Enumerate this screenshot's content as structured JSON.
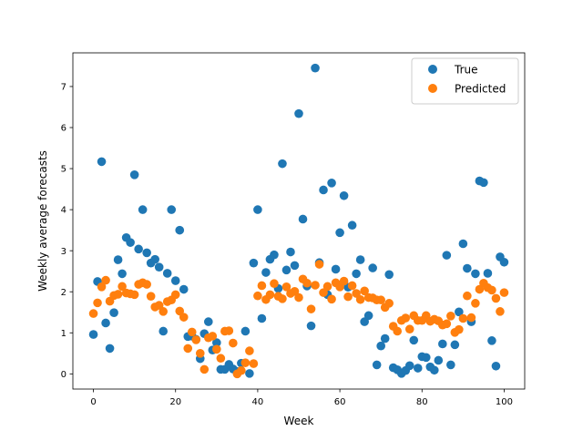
{
  "chart_data": {
    "type": "scatter",
    "xlabel": "Week",
    "ylabel": "Weekly average forecasts",
    "xlim": [
      -5,
      105
    ],
    "ylim": [
      -0.37,
      7.82
    ],
    "xticks": [
      0,
      20,
      40,
      60,
      80,
      100
    ],
    "yticks": [
      0,
      1,
      2,
      3,
      4,
      5,
      6,
      7
    ],
    "grid": false,
    "legend_position": "top-right",
    "x": [
      0,
      1,
      2,
      3,
      4,
      5,
      6,
      7,
      8,
      9,
      10,
      11,
      12,
      13,
      14,
      15,
      16,
      17,
      18,
      19,
      20,
      21,
      22,
      23,
      24,
      25,
      26,
      27,
      28,
      29,
      30,
      31,
      32,
      33,
      34,
      35,
      36,
      37,
      38,
      39,
      40,
      41,
      42,
      43,
      44,
      45,
      46,
      47,
      48,
      49,
      50,
      51,
      52,
      53,
      54,
      55,
      56,
      57,
      58,
      59,
      60,
      61,
      62,
      63,
      64,
      65,
      66,
      67,
      68,
      69,
      70,
      71,
      72,
      73,
      74,
      75,
      76,
      77,
      78,
      79,
      80,
      81,
      82,
      83,
      84,
      85,
      86,
      87,
      88,
      89,
      90,
      91,
      92,
      93,
      94,
      95,
      96,
      97,
      98,
      99,
      100
    ],
    "series": [
      {
        "name": "True",
        "color": "#1f77b4",
        "values": [
          0.96,
          2.25,
          5.17,
          1.24,
          0.62,
          1.49,
          2.78,
          2.44,
          3.32,
          3.2,
          4.85,
          3.04,
          4.0,
          2.95,
          2.7,
          2.79,
          2.6,
          1.04,
          2.45,
          4.0,
          2.27,
          3.5,
          2.06,
          0.91,
          0.92,
          0.84,
          0.37,
          0.98,
          1.27,
          0.58,
          0.76,
          0.11,
          0.11,
          0.23,
          0.12,
          0.06,
          0.26,
          1.04,
          0.01,
          2.7,
          4.0,
          1.35,
          2.47,
          2.79,
          2.9,
          2.08,
          5.12,
          2.53,
          2.97,
          2.64,
          6.34,
          3.77,
          2.14,
          1.17,
          7.45,
          2.71,
          4.48,
          1.93,
          4.65,
          2.55,
          3.44,
          4.34,
          2.11,
          3.62,
          2.44,
          2.78,
          1.27,
          1.42,
          2.58,
          0.22,
          0.68,
          0.86,
          2.42,
          0.15,
          0.1,
          0.01,
          0.08,
          0.2,
          0.82,
          0.14,
          0.42,
          0.4,
          0.17,
          0.09,
          0.33,
          0.73,
          2.89,
          0.22,
          0.71,
          1.51,
          3.17,
          2.57,
          1.27,
          2.44,
          4.7,
          4.66,
          2.45,
          0.81,
          0.19,
          2.85,
          2.72
        ]
      },
      {
        "name": "Predicted",
        "color": "#ff7f0e",
        "values": [
          1.47,
          1.73,
          2.12,
          2.28,
          1.77,
          1.91,
          1.94,
          2.13,
          1.97,
          1.95,
          1.93,
          2.18,
          2.22,
          2.18,
          1.89,
          1.63,
          1.67,
          1.52,
          1.76,
          1.8,
          1.93,
          1.53,
          1.38,
          0.62,
          1.02,
          0.83,
          0.5,
          0.11,
          0.88,
          0.92,
          0.6,
          0.38,
          1.04,
          1.05,
          0.75,
          0.0,
          0.08,
          0.27,
          0.56,
          0.25,
          1.9,
          2.15,
          1.81,
          1.93,
          2.2,
          1.89,
          1.83,
          2.12,
          1.96,
          2.01,
          1.86,
          2.31,
          2.21,
          1.58,
          2.16,
          2.67,
          1.98,
          2.13,
          1.82,
          2.22,
          2.12,
          2.26,
          1.88,
          2.15,
          1.96,
          1.81,
          2.02,
          1.86,
          1.85,
          1.8,
          1.8,
          1.62,
          1.72,
          1.16,
          1.04,
          1.3,
          1.36,
          1.09,
          1.42,
          1.3,
          1.3,
          1.42,
          1.28,
          1.33,
          1.29,
          1.19,
          1.22,
          1.41,
          1.01,
          1.08,
          1.35,
          1.9,
          1.37,
          1.72,
          2.06,
          2.21,
          2.1,
          2.04,
          1.84,
          1.52,
          1.98
        ]
      }
    ]
  }
}
